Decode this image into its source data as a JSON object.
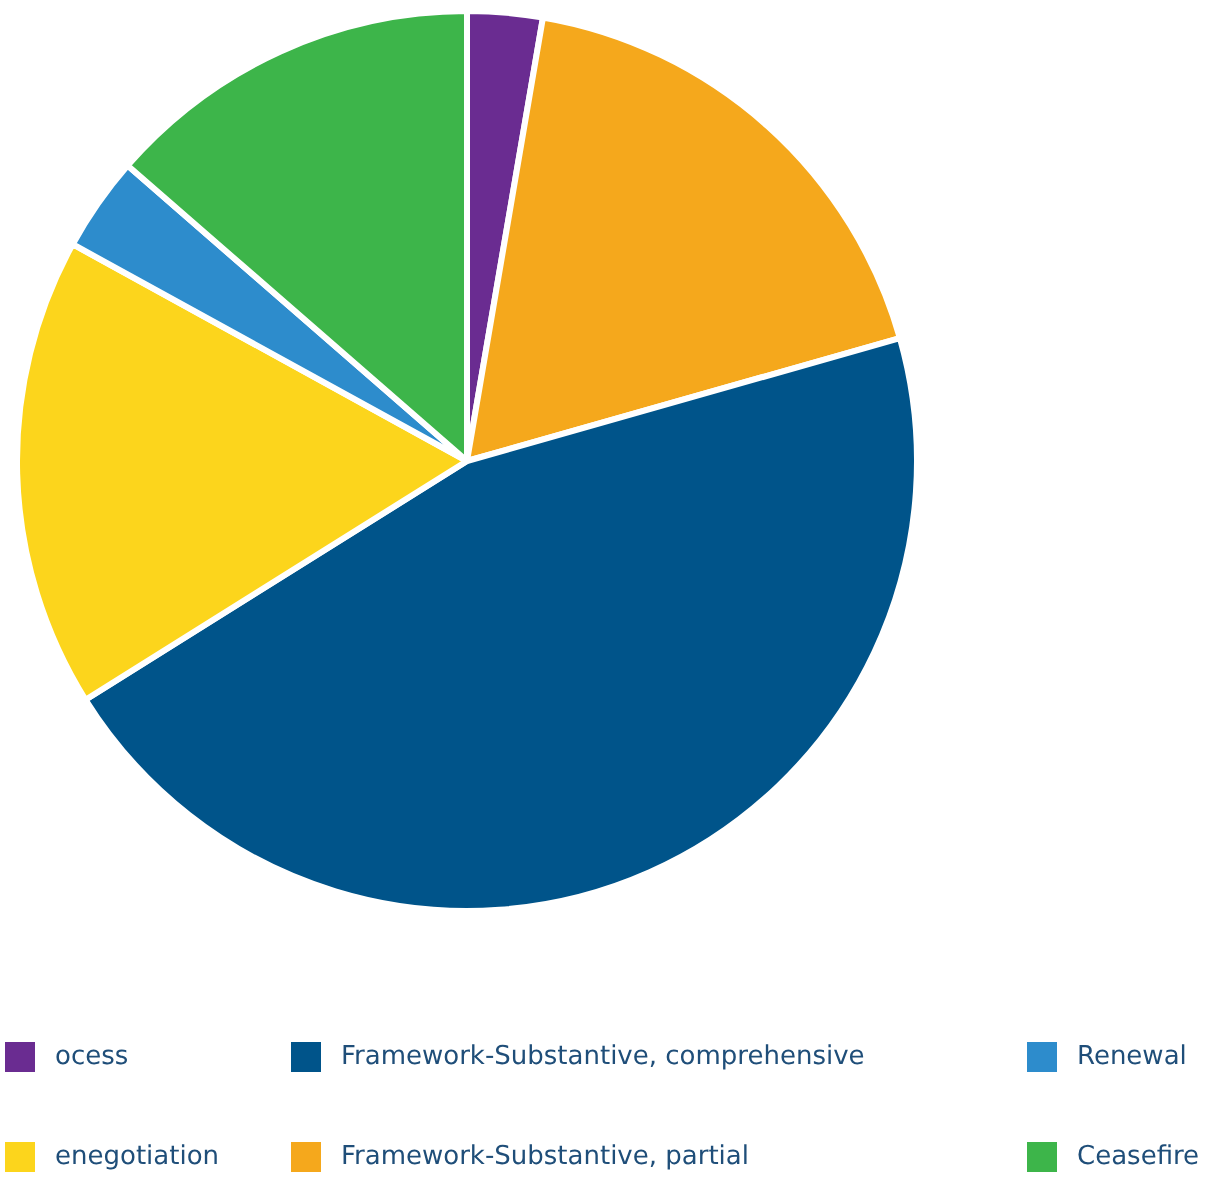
{
  "chart_data": {
    "type": "pie",
    "categories": [
      "ocess",
      "Framework-Substantive, partial",
      "Framework-Substantive, comprehensive",
      "enegotiation",
      "Renewal",
      "Ceasefire"
    ],
    "values": [
      2.7,
      17.9,
      45.5,
      16.9,
      3.4,
      13.6
    ],
    "colors": [
      "#6a2c91",
      "#f5a81c",
      "#00548a",
      "#fcd51c",
      "#2d8ccc",
      "#3db54a"
    ],
    "legend": "bottom"
  }
}
